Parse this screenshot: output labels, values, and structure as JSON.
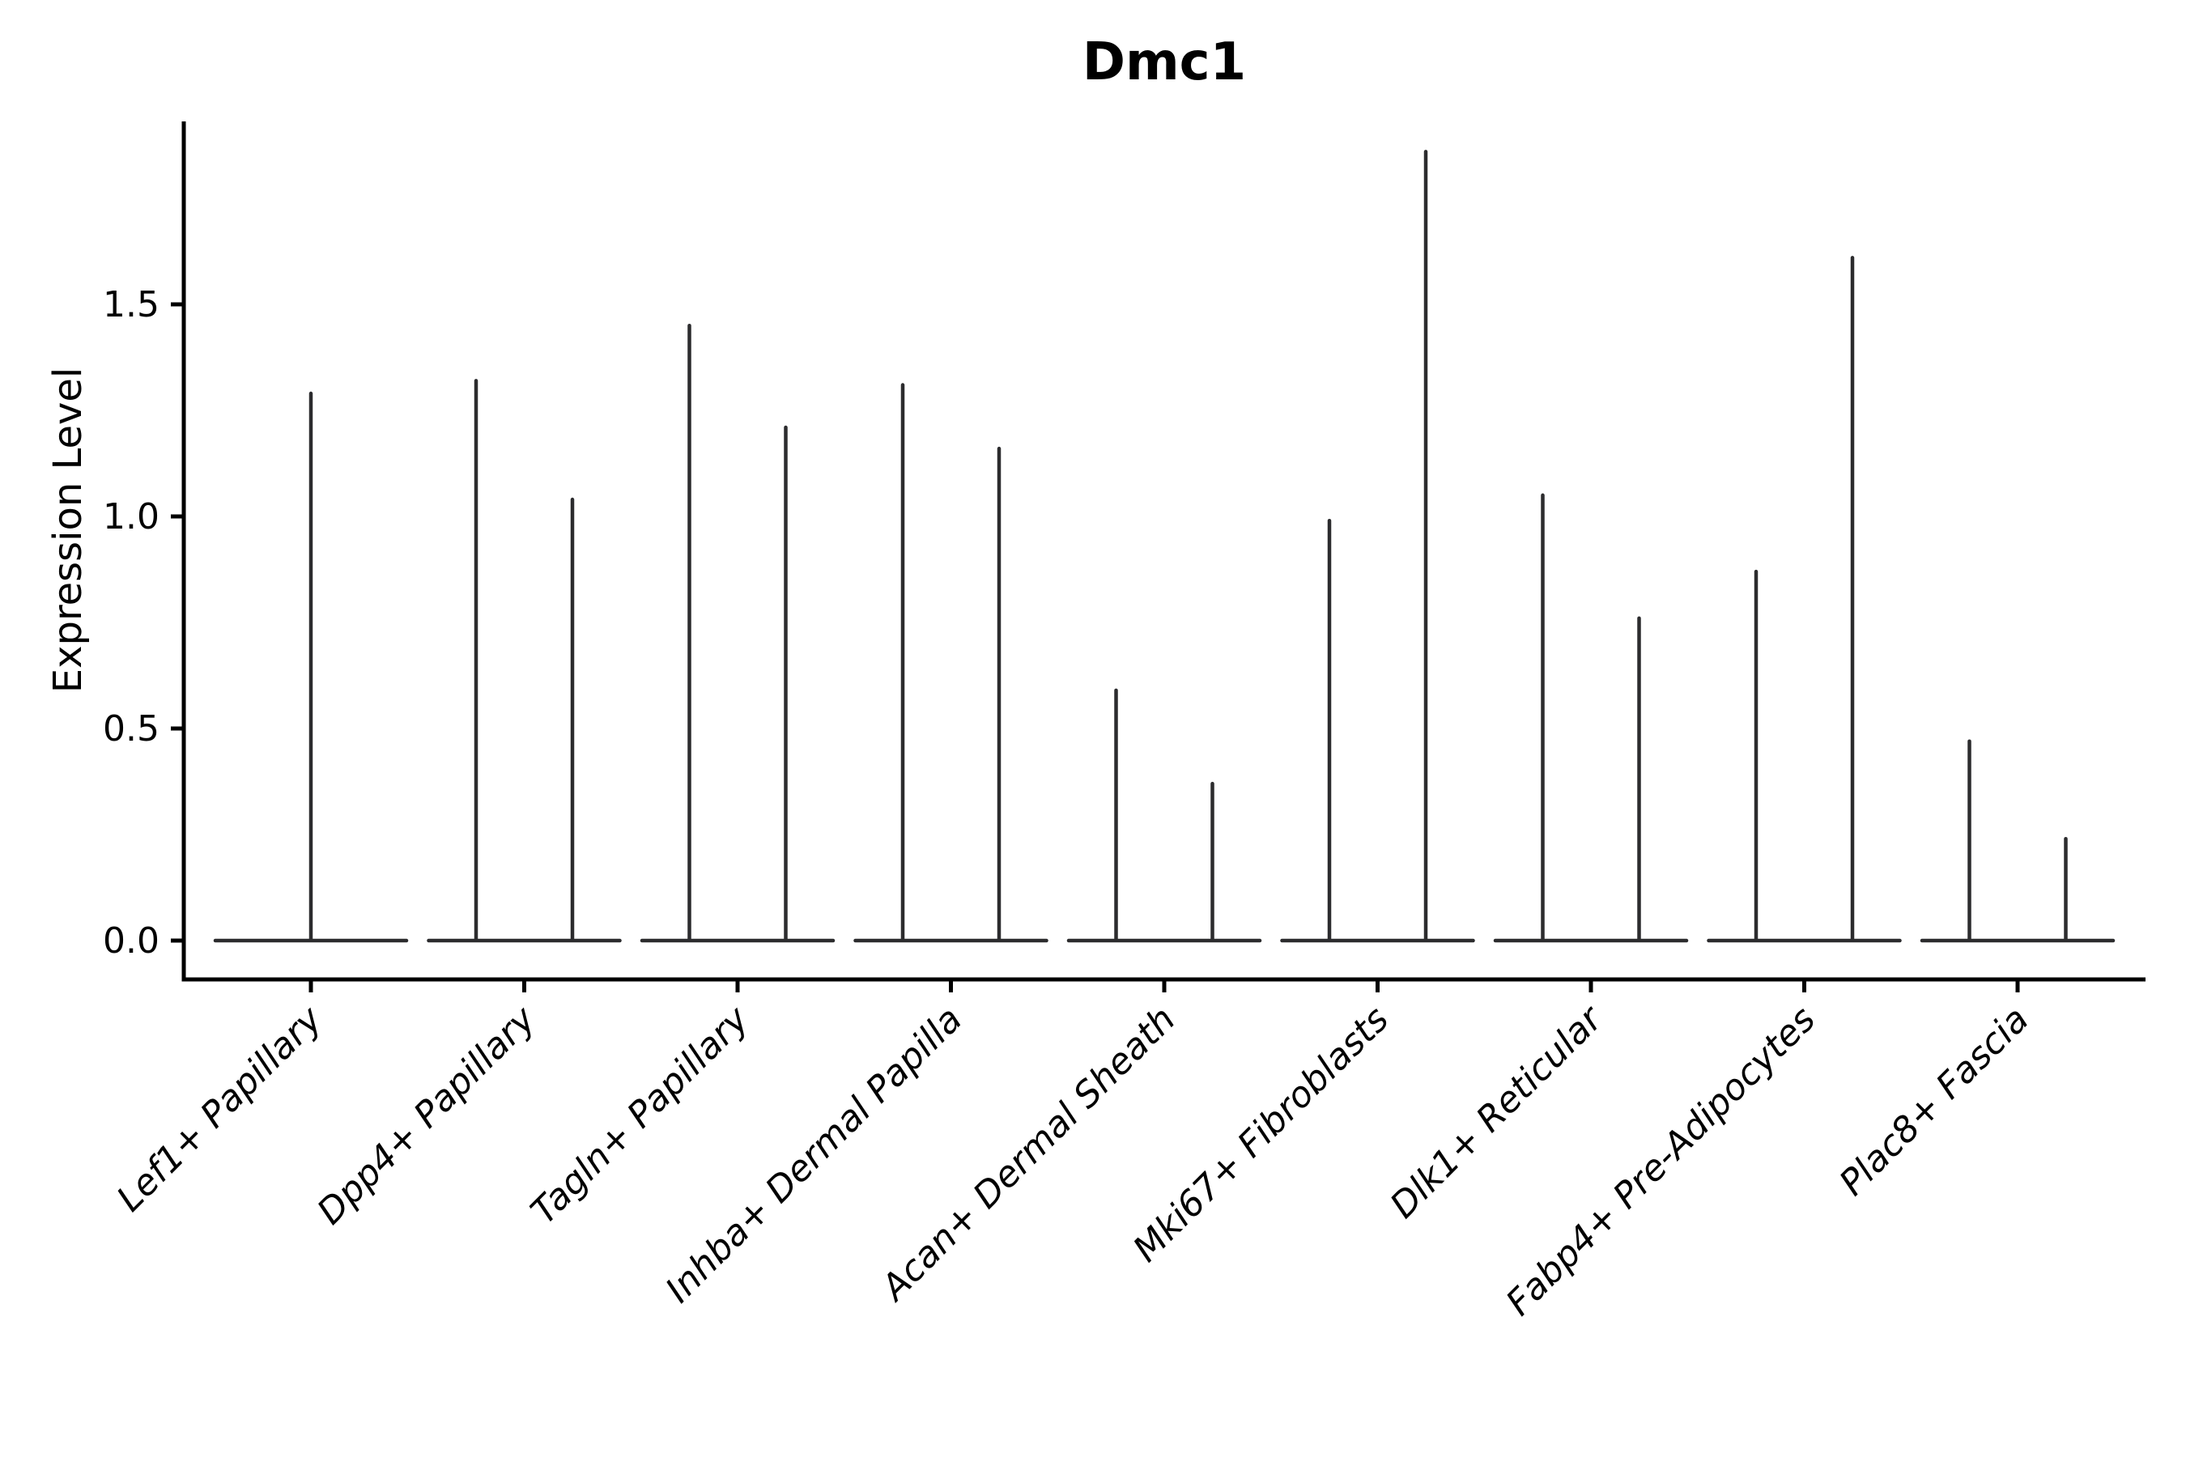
{
  "chart_data": {
    "type": "violin",
    "title": "Dmc1",
    "ylabel": "Expression Level",
    "xlabel": "",
    "grid": false,
    "legend": null,
    "ylim": [
      -0.09,
      1.93
    ],
    "yticks": [
      {
        "value": 0.0,
        "label": "0.0"
      },
      {
        "value": 0.5,
        "label": "0.5"
      },
      {
        "value": 1.0,
        "label": "1.0"
      },
      {
        "value": 1.5,
        "label": "1.5"
      }
    ],
    "description": "Violin plot of Dmc1 expression; violins are collapsed to a flat baseline at 0 with a thin spike up to the maximum expression value. Most categories contain two side-by-side violins.",
    "categories": [
      {
        "label": "Lef1+ Papillary",
        "spike_max": [
          1.29
        ]
      },
      {
        "label": "Dpp4+ Papillary",
        "spike_max": [
          1.32,
          1.04
        ]
      },
      {
        "label": "Tagln+ Papillary",
        "spike_max": [
          1.45,
          1.21
        ]
      },
      {
        "label": "Inhba+ Dermal Papilla",
        "spike_max": [
          1.31,
          1.16
        ]
      },
      {
        "label": "Acan+ Dermal Sheath",
        "spike_max": [
          0.59,
          0.37
        ]
      },
      {
        "label": "Mki67+ Fibroblasts",
        "spike_max": [
          0.99,
          1.86
        ]
      },
      {
        "label": "Dlk1+ Reticular",
        "spike_max": [
          1.05,
          0.76
        ]
      },
      {
        "label": "Fabp4+ Pre-Adipocytes",
        "spike_max": [
          0.87,
          1.61
        ]
      },
      {
        "label": "Plac8+ Fascia",
        "spike_max": [
          0.47,
          0.24
        ]
      }
    ],
    "colors": {
      "violin": "#2c2c2e",
      "axis": "#000000",
      "text": "#000000",
      "background": "#ffffff"
    }
  }
}
